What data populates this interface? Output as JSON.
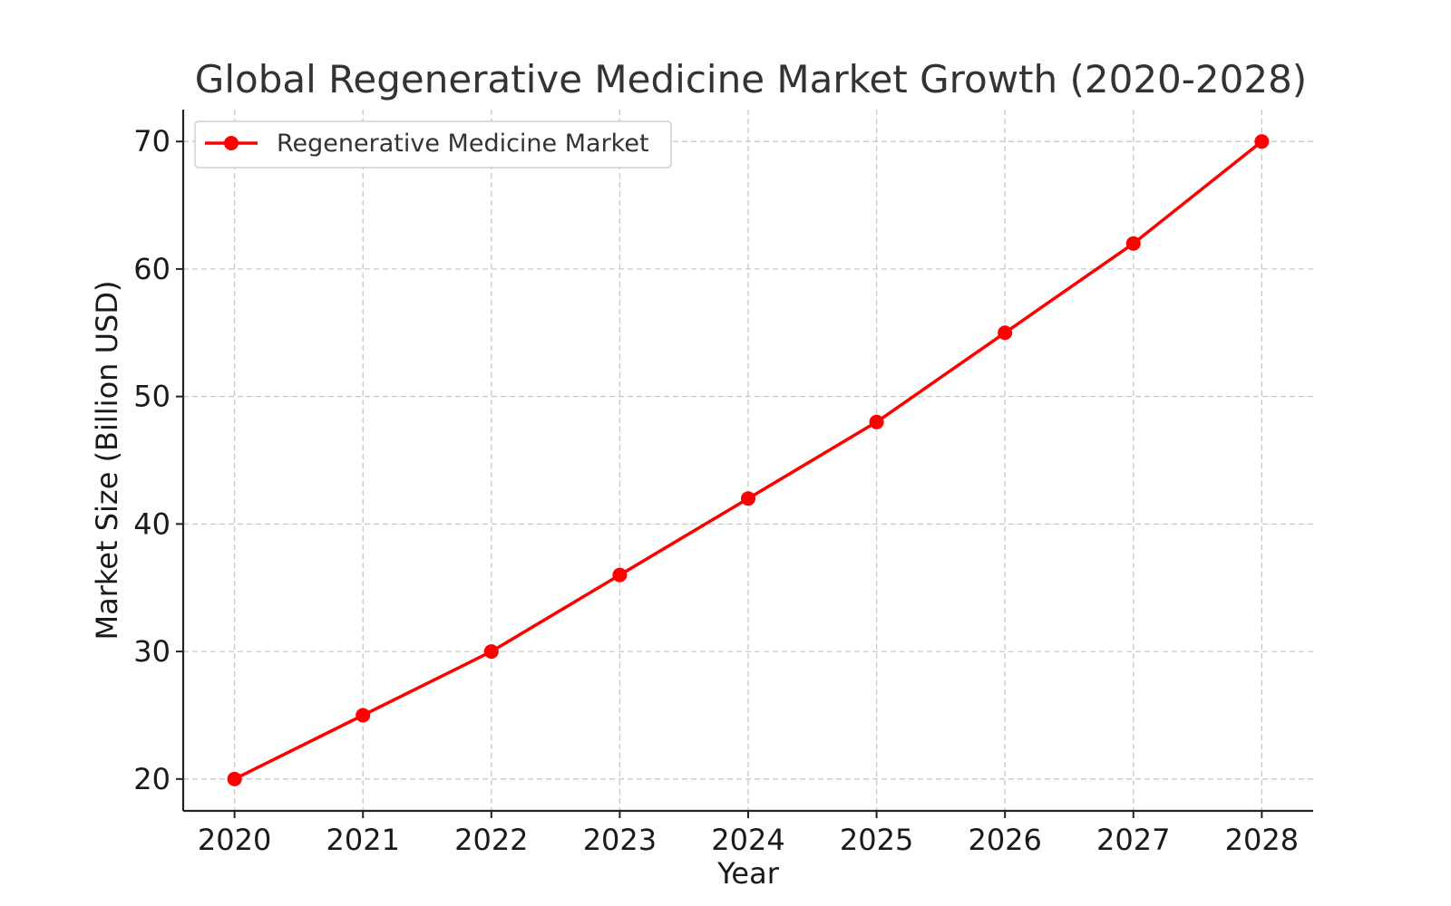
{
  "chart_data": {
    "type": "line",
    "title": "Global Regenerative Medicine Market Growth (2020-2028)",
    "xlabel": "Year",
    "ylabel": "Market Size (Billion USD)",
    "x": [
      2020,
      2021,
      2022,
      2023,
      2024,
      2025,
      2026,
      2027,
      2028
    ],
    "x_tick_labels": [
      "2020",
      "2021",
      "2022",
      "2023",
      "2024",
      "2025",
      "2026",
      "2027",
      "2028"
    ],
    "y_ticks": [
      20,
      30,
      40,
      50,
      60,
      70
    ],
    "y_tick_labels": [
      "20",
      "30",
      "40",
      "50",
      "60",
      "70"
    ],
    "xlim": [
      2019.6,
      2028.4
    ],
    "ylim": [
      17.5,
      72.5
    ],
    "grid": true,
    "legend_position": "top-left",
    "series": [
      {
        "name": "Regenerative Medicine Market",
        "color": "#ff0000",
        "marker": "circle",
        "values": [
          20,
          25,
          30,
          36,
          42,
          48,
          55,
          62,
          70
        ]
      }
    ]
  }
}
